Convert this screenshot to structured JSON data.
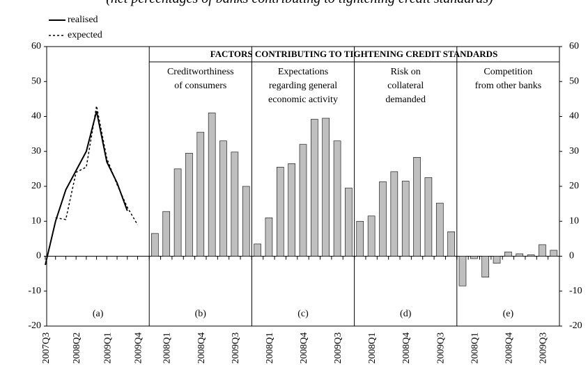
{
  "title": "(net percentages of banks contributing to tightening credit standards)",
  "group_title": "FACTORS CONTRIBUTING TO TIGHTENING CREDIT STANDARDS",
  "chart_data": [
    {
      "type": "line",
      "panel_label": "(a)",
      "categories": [
        "2007Q3",
        null,
        null,
        "2008Q2",
        null,
        null,
        "2009Q1",
        null,
        null,
        "2009Q4"
      ],
      "series": [
        {
          "name": "realised",
          "color": "#000000",
          "dash": "solid",
          "values": [
            -2.5,
            10,
            19,
            24.5,
            30,
            41.5,
            27,
            21,
            13,
            null
          ]
        },
        {
          "name": "expected",
          "color": "#000000",
          "dash": "dotted",
          "values": [
            null,
            11,
            10.5,
            24,
            25.5,
            43,
            28,
            20.5,
            14,
            9
          ]
        }
      ],
      "ylim": [
        -20,
        60
      ],
      "yticks": [
        -20,
        -10,
        0,
        10,
        20,
        30,
        40,
        50,
        60
      ]
    },
    {
      "type": "bar",
      "panel_title": [
        "Creditworthiness",
        "of consumers"
      ],
      "panel_label": "(b)",
      "color": "#bfbfbf",
      "categories": [
        null,
        "2008Q1",
        null,
        null,
        "2008Q4",
        null,
        null,
        "2009Q3",
        null
      ],
      "values": [
        6.5,
        12.8,
        25,
        29.5,
        35.5,
        41,
        33,
        29.8,
        20
      ],
      "ylim": [
        -20,
        60
      ]
    },
    {
      "type": "bar",
      "panel_title": [
        "Expectations",
        "regarding general",
        "economic activity"
      ],
      "panel_label": "(c)",
      "color": "#bfbfbf",
      "categories": [
        null,
        "2008Q1",
        null,
        null,
        "2008Q4",
        null,
        null,
        "2009Q3",
        null
      ],
      "values": [
        3.5,
        11,
        25.5,
        26.5,
        32,
        39.2,
        39.5,
        33,
        19.5
      ],
      "ylim": [
        -20,
        60
      ]
    },
    {
      "type": "bar",
      "panel_title": [
        "Risk on",
        "collateral",
        "demanded"
      ],
      "panel_label": "(d)",
      "color": "#bfbfbf",
      "categories": [
        null,
        "2008Q1",
        null,
        null,
        "2008Q4",
        null,
        null,
        "2009Q3",
        null
      ],
      "values": [
        10,
        11.5,
        21.3,
        24.2,
        21.5,
        28.3,
        22.5,
        15.2,
        7
      ],
      "ylim": [
        -20,
        60
      ]
    },
    {
      "type": "bar",
      "panel_title": [
        "Competition",
        "from other banks"
      ],
      "panel_label": "(e)",
      "color": "#bfbfbf",
      "categories": [
        null,
        "2008Q1",
        null,
        null,
        "2008Q4",
        null,
        null,
        "2009Q3",
        null
      ],
      "values": [
        -8.5,
        -0.7,
        -6,
        -2,
        1.2,
        0.7,
        0.4,
        3.3,
        1.7
      ],
      "ylim": [
        -20,
        60
      ],
      "y2lim": [
        -20,
        60
      ],
      "y2ticks": [
        -20,
        -10,
        0,
        10,
        20,
        30,
        40,
        50,
        60
      ]
    }
  ]
}
